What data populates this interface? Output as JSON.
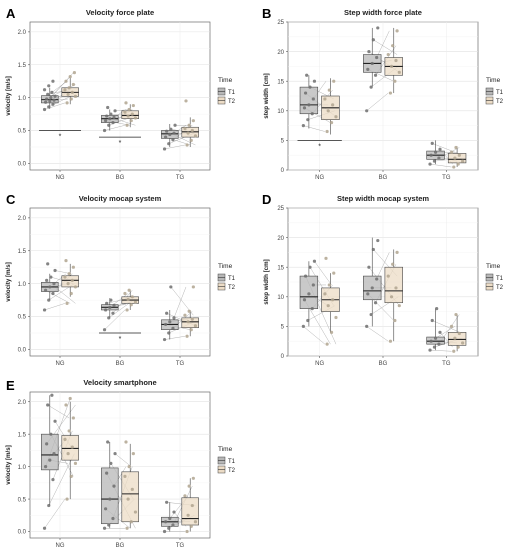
{
  "legend_title": "Time",
  "colors": {
    "T1": "#b7b7b7",
    "T2": "#ecdcc6",
    "point_T1": "#6e6e6e",
    "point_T2": "#b0a48f",
    "line": "#9a9a9a"
  },
  "chart_data": [
    {
      "panel": "A",
      "type": "box",
      "title": "Velocity force plate",
      "ylabel": "velocity [m/s]",
      "categories": [
        "NG",
        "BG",
        "TG"
      ],
      "yticks": [
        "0.0",
        "0.5",
        "1.0",
        "1.5",
        "2.0"
      ],
      "ylim": [
        -0.1,
        2.15
      ],
      "legend": [
        "T1",
        "T2"
      ],
      "series": [
        {
          "name": "T1",
          "boxes": [
            {
              "q1": 0.92,
              "median": 0.97,
              "q3": 1.03,
              "whisker_low": 0.83,
              "whisker_high": 1.15,
              "points": [
                0.82,
                0.86,
                0.9,
                0.93,
                0.95,
                0.96,
                0.98,
                1.0,
                1.02,
                1.05,
                1.08,
                1.12,
                1.18,
                1.25
              ]
            },
            {
              "q1": 0.62,
              "median": 0.68,
              "q3": 0.73,
              "whisker_low": 0.5,
              "whisker_high": 0.82,
              "points": [
                0.5,
                0.58,
                0.62,
                0.65,
                0.68,
                0.7,
                0.72,
                0.75,
                0.8,
                0.85
              ]
            },
            {
              "q1": 0.38,
              "median": 0.45,
              "q3": 0.5,
              "whisker_low": 0.25,
              "whisker_high": 0.6,
              "points": [
                0.22,
                0.3,
                0.36,
                0.4,
                0.44,
                0.46,
                0.49,
                0.52,
                0.58
              ]
            }
          ]
        },
        {
          "name": "T2",
          "boxes": [
            {
              "q1": 1.02,
              "median": 1.08,
              "q3": 1.15,
              "whisker_low": 0.9,
              "whisker_high": 1.3,
              "points": [
                0.92,
                0.98,
                1.02,
                1.05,
                1.08,
                1.12,
                1.15,
                1.2,
                1.25,
                1.32,
                1.38
              ]
            },
            {
              "q1": 0.68,
              "median": 0.73,
              "q3": 0.8,
              "whisker_low": 0.55,
              "whisker_high": 0.9,
              "points": [
                0.58,
                0.65,
                0.69,
                0.72,
                0.75,
                0.78,
                0.82,
                0.88,
                0.92
              ]
            },
            {
              "q1": 0.4,
              "median": 0.48,
              "q3": 0.55,
              "whisker_low": 0.25,
              "whisker_high": 0.7,
              "points": [
                0.28,
                0.35,
                0.42,
                0.46,
                0.5,
                0.53,
                0.58,
                0.65,
                0.95
              ]
            }
          ]
        }
      ],
      "significance": [
        {
          "from": "NG",
          "label": "*",
          "y": 0.5
        },
        {
          "from": "BG",
          "label": "*",
          "y": 0.4
        }
      ]
    },
    {
      "panel": "B",
      "type": "box",
      "title": "Step width force plate",
      "ylabel": "step width [cm]",
      "categories": [
        "NG",
        "BG",
        "TG"
      ],
      "yticks": [
        "0",
        "5",
        "10",
        "15",
        "20",
        "25"
      ],
      "ylim": [
        0,
        25
      ],
      "legend": [
        "T1",
        "T2"
      ],
      "series": [
        {
          "name": "T1",
          "boxes": [
            {
              "q1": 9.5,
              "median": 11.0,
              "q3": 14.0,
              "whisker_low": 7.0,
              "whisker_high": 16.0,
              "points": [
                7.5,
                8.5,
                9.5,
                10.5,
                11.0,
                12.0,
                13.0,
                14.0,
                15.0,
                16.0
              ]
            },
            {
              "q1": 16.5,
              "median": 18.0,
              "q3": 19.5,
              "whisker_low": 14.0,
              "whisker_high": 24.0,
              "points": [
                10.0,
                14.0,
                16.0,
                17.0,
                18.0,
                19.0,
                20.0,
                22.0,
                24.0
              ]
            },
            {
              "q1": 1.8,
              "median": 2.5,
              "q3": 3.2,
              "whisker_low": 1.0,
              "whisker_high": 5.0,
              "points": [
                1.0,
                1.5,
                2.0,
                2.5,
                3.0,
                3.5,
                4.5
              ]
            }
          ]
        },
        {
          "name": "T2",
          "boxes": [
            {
              "q1": 8.5,
              "median": 10.5,
              "q3": 12.5,
              "whisker_low": 6.0,
              "whisker_high": 15.5,
              "points": [
                6.5,
                8.0,
                9.0,
                10.0,
                11.0,
                12.0,
                13.5,
                15.0
              ]
            },
            {
              "q1": 16.0,
              "median": 17.5,
              "q3": 19.0,
              "whisker_low": 13.0,
              "whisker_high": 24.0,
              "points": [
                13.0,
                15.0,
                16.5,
                17.5,
                18.5,
                19.5,
                21.0,
                23.5
              ]
            },
            {
              "q1": 1.2,
              "median": 1.8,
              "q3": 2.8,
              "whisker_low": 0.5,
              "whisker_high": 4.0,
              "points": [
                0.5,
                1.0,
                1.5,
                2.0,
                2.5,
                3.0,
                3.8
              ]
            }
          ]
        }
      ],
      "significance": [
        {
          "from": "NG",
          "label": "*",
          "y": 5.0
        }
      ]
    },
    {
      "panel": "C",
      "type": "box",
      "title": "Velocity mocap system",
      "ylabel": "velocity [m/s]",
      "categories": [
        "NG",
        "BG",
        "TG"
      ],
      "yticks": [
        "0.0",
        "0.5",
        "1.0",
        "1.5",
        "2.0"
      ],
      "ylim": [
        -0.1,
        2.15
      ],
      "legend": [
        "T1",
        "T2"
      ],
      "series": [
        {
          "name": "T1",
          "boxes": [
            {
              "q1": 0.88,
              "median": 0.95,
              "q3": 1.02,
              "whisker_low": 0.75,
              "whisker_high": 1.15,
              "points": [
                0.6,
                0.75,
                0.85,
                0.9,
                0.95,
                1.0,
                1.05,
                1.1,
                1.2,
                1.3
              ]
            },
            {
              "q1": 0.6,
              "median": 0.64,
              "q3": 0.68,
              "whisker_low": 0.48,
              "whisker_high": 0.78,
              "points": [
                0.3,
                0.48,
                0.55,
                0.6,
                0.64,
                0.67,
                0.7,
                0.75
              ]
            },
            {
              "q1": 0.3,
              "median": 0.38,
              "q3": 0.45,
              "whisker_low": 0.15,
              "whisker_high": 0.6,
              "points": [
                0.15,
                0.25,
                0.32,
                0.38,
                0.42,
                0.48,
                0.55,
                0.95
              ]
            }
          ]
        },
        {
          "name": "T2",
          "boxes": [
            {
              "q1": 0.95,
              "median": 1.05,
              "q3": 1.12,
              "whisker_low": 0.8,
              "whisker_high": 1.3,
              "points": [
                0.7,
                0.85,
                0.95,
                1.0,
                1.05,
                1.1,
                1.15,
                1.25,
                1.35
              ]
            },
            {
              "q1": 0.7,
              "median": 0.75,
              "q3": 0.8,
              "whisker_low": 0.6,
              "whisker_high": 0.9,
              "points": [
                0.6,
                0.68,
                0.72,
                0.76,
                0.8,
                0.85,
                0.9
              ]
            },
            {
              "q1": 0.33,
              "median": 0.42,
              "q3": 0.48,
              "whisker_low": 0.2,
              "whisker_high": 0.6,
              "points": [
                0.2,
                0.3,
                0.36,
                0.42,
                0.46,
                0.52,
                0.58,
                0.95
              ]
            }
          ]
        }
      ],
      "significance": [
        {
          "from": "BG",
          "label": "*",
          "y": 0.25
        }
      ]
    },
    {
      "panel": "D",
      "type": "box",
      "title": "Step width mocap system",
      "ylabel": "step width [cm]",
      "categories": [
        "NG",
        "BG",
        "TG"
      ],
      "yticks": [
        "0",
        "5",
        "10",
        "15",
        "20",
        "25"
      ],
      "ylim": [
        0,
        25
      ],
      "legend": [
        "T1",
        "T2"
      ],
      "series": [
        {
          "name": "T1",
          "boxes": [
            {
              "q1": 8.0,
              "median": 10.0,
              "q3": 13.5,
              "whisker_low": 5.0,
              "whisker_high": 16.0,
              "points": [
                5.0,
                6.0,
                8.0,
                9.5,
                10.5,
                12.0,
                13.5,
                15.0,
                16.0
              ]
            },
            {
              "q1": 9.5,
              "median": 11.0,
              "q3": 13.5,
              "whisker_low": 5.0,
              "whisker_high": 20.0,
              "points": [
                5.0,
                7.0,
                9.0,
                10.5,
                11.5,
                13.0,
                15.0,
                18.0,
                19.5
              ]
            },
            {
              "q1": 2.0,
              "median": 2.5,
              "q3": 3.2,
              "whisker_low": 1.0,
              "whisker_high": 8.0,
              "points": [
                1.0,
                1.5,
                2.0,
                2.5,
                3.0,
                4.0,
                6.0,
                8.0
              ]
            }
          ]
        },
        {
          "name": "T2",
          "boxes": [
            {
              "q1": 7.5,
              "median": 9.5,
              "q3": 11.5,
              "whisker_low": 4.0,
              "whisker_high": 14.0,
              "points": [
                2.0,
                4.0,
                6.5,
                8.5,
                9.5,
                10.5,
                12.0,
                14.0,
                16.5
              ]
            },
            {
              "q1": 9.0,
              "median": 11.0,
              "q3": 15.0,
              "whisker_low": 2.5,
              "whisker_high": 18.0,
              "points": [
                2.5,
                6.0,
                8.5,
                10.0,
                11.5,
                13.5,
                15.5,
                17.5
              ]
            },
            {
              "q1": 1.8,
              "median": 2.8,
              "q3": 4.0,
              "whisker_low": 0.8,
              "whisker_high": 7.0,
              "points": [
                0.8,
                1.5,
                2.2,
                3.0,
                3.8,
                5.0,
                7.0
              ]
            }
          ]
        }
      ],
      "significance": []
    },
    {
      "panel": "E",
      "type": "box",
      "title": "Velocity smartphone",
      "ylabel": "velocity [m/s]",
      "categories": [
        "NG",
        "BG",
        "TG"
      ],
      "yticks": [
        "0.0",
        "0.5",
        "1.0",
        "1.5",
        "2.0"
      ],
      "ylim": [
        -0.1,
        2.15
      ],
      "legend": [
        "T1",
        "T2"
      ],
      "series": [
        {
          "name": "T1",
          "boxes": [
            {
              "q1": 0.95,
              "median": 1.18,
              "q3": 1.5,
              "whisker_low": 0.4,
              "whisker_high": 2.1,
              "points": [
                0.05,
                0.4,
                0.8,
                1.0,
                1.1,
                1.2,
                1.35,
                1.5,
                1.7,
                1.95,
                2.1
              ]
            },
            {
              "q1": 0.12,
              "median": 0.5,
              "q3": 0.98,
              "whisker_low": 0.05,
              "whisker_high": 1.38,
              "points": [
                0.05,
                0.1,
                0.2,
                0.35,
                0.5,
                0.7,
                0.9,
                1.05,
                1.2,
                1.38
              ]
            },
            {
              "q1": 0.08,
              "median": 0.15,
              "q3": 0.22,
              "whisker_low": 0.0,
              "whisker_high": 0.45,
              "points": [
                0.0,
                0.05,
                0.1,
                0.15,
                0.2,
                0.3,
                0.45
              ]
            }
          ]
        },
        {
          "name": "T2",
          "boxes": [
            {
              "q1": 1.1,
              "median": 1.28,
              "q3": 1.48,
              "whisker_low": 0.5,
              "whisker_high": 2.0,
              "points": [
                0.5,
                0.85,
                1.05,
                1.2,
                1.3,
                1.42,
                1.55,
                1.75,
                1.95,
                2.05
              ]
            },
            {
              "q1": 0.15,
              "median": 0.58,
              "q3": 0.92,
              "whisker_low": 0.05,
              "whisker_high": 1.35,
              "points": [
                0.05,
                0.15,
                0.3,
                0.5,
                0.65,
                0.85,
                1.0,
                1.2,
                1.38
              ]
            },
            {
              "q1": 0.1,
              "median": 0.2,
              "q3": 0.52,
              "whisker_low": 0.0,
              "whisker_high": 0.82,
              "points": [
                0.0,
                0.08,
                0.15,
                0.25,
                0.4,
                0.55,
                0.7,
                0.82
              ]
            }
          ]
        }
      ],
      "significance": []
    }
  ]
}
